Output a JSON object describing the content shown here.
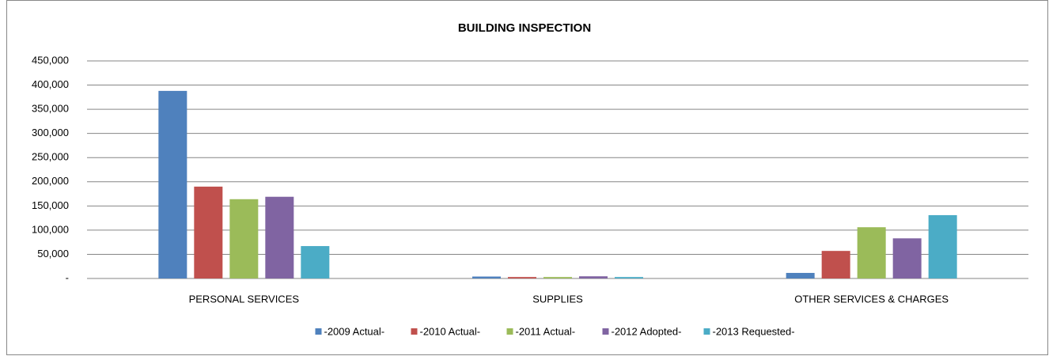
{
  "chart_data": {
    "type": "bar",
    "title": "BUILDING INSPECTION",
    "categories": [
      "PERSONAL SERVICES",
      "SUPPLIES",
      "OTHER SERVICES & CHARGES"
    ],
    "series": [
      {
        "name": "-2009 Actual-",
        "color": "#4f81bd",
        "values": [
          388000,
          4000,
          11500
        ]
      },
      {
        "name": "-2010 Actual-",
        "color": "#c0504d",
        "values": [
          190000,
          3000,
          57000
        ]
      },
      {
        "name": "-2011 Actual-",
        "color": "#9bbb59",
        "values": [
          164000,
          3000,
          106000
        ]
      },
      {
        "name": "-2012 Adopted-",
        "color": "#8064a2",
        "values": [
          169000,
          4500,
          83000
        ]
      },
      {
        "name": "-2013 Requested-",
        "color": "#4bacc6",
        "values": [
          67000,
          3000,
          131000
        ]
      }
    ],
    "ylim": [
      0,
      450000
    ],
    "yticks": [
      {
        "value": 0,
        "label": "-"
      },
      {
        "value": 50000,
        "label": "50,000"
      },
      {
        "value": 100000,
        "label": "100,000"
      },
      {
        "value": 150000,
        "label": "150,000"
      },
      {
        "value": 200000,
        "label": "200,000"
      },
      {
        "value": 250000,
        "label": "250,000"
      },
      {
        "value": 300000,
        "label": "300,000"
      },
      {
        "value": 350000,
        "label": "350,000"
      },
      {
        "value": 400000,
        "label": "400,000"
      },
      {
        "value": 450000,
        "label": "450,000"
      }
    ],
    "grid": true,
    "legend": "bottom"
  }
}
